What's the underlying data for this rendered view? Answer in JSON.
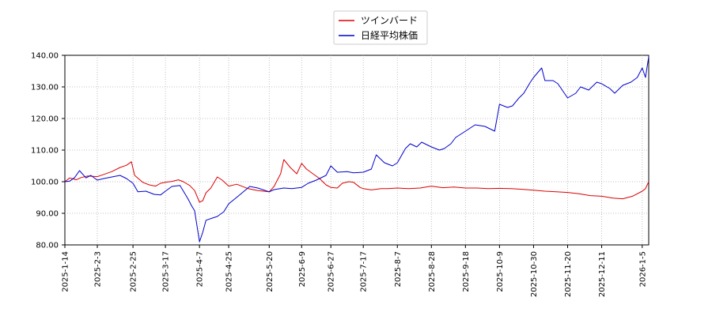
{
  "chart_data": {
    "type": "line",
    "title": "",
    "xlabel": "",
    "ylabel": "",
    "ylim": [
      80,
      140
    ],
    "yticks": [
      80,
      90,
      100,
      110,
      120,
      130,
      140
    ],
    "ytick_labels": [
      "80.00",
      "90.00",
      "100.00",
      "110.00",
      "120.00",
      "130.00",
      "140.00"
    ],
    "xlim": [
      "2025-01-14",
      "2026-01-09"
    ],
    "xticks": [
      "2025-01-14",
      "2025-02-03",
      "2025-02-25",
      "2025-03-17",
      "2025-04-07",
      "2025-04-25",
      "2025-05-20",
      "2025-06-09",
      "2025-06-27",
      "2025-07-17",
      "2025-08-07",
      "2025-08-28",
      "2025-09-18",
      "2025-10-09",
      "2025-10-30",
      "2025-11-20",
      "2025-12-11",
      "2026-01-05"
    ],
    "xtick_labels": [
      "2025-1-14",
      "2025-2-3",
      "2025-2-25",
      "2025-3-17",
      "2025-4-7",
      "2025-4-25",
      "2025-5-20",
      "2025-6-9",
      "2025-6-27",
      "2025-7-17",
      "2025-8-7",
      "2025-8-28",
      "2025-9-18",
      "2025-10-9",
      "2025-10-30",
      "2025-11-20",
      "2025-12-11",
      "2026-1-5"
    ],
    "grid": true,
    "legend_position": "top-center",
    "series": [
      {
        "name": "ツインバード",
        "color": "#dd0000",
        "points": [
          [
            "2025-01-14",
            100.0
          ],
          [
            "2025-01-17",
            101.2
          ],
          [
            "2025-01-21",
            100.6
          ],
          [
            "2025-01-24",
            101.3
          ],
          [
            "2025-01-28",
            101.8
          ],
          [
            "2025-02-03",
            101.6
          ],
          [
            "2025-02-07",
            102.3
          ],
          [
            "2025-02-12",
            103.2
          ],
          [
            "2025-02-17",
            104.5
          ],
          [
            "2025-02-21",
            105.2
          ],
          [
            "2025-02-24",
            106.3
          ],
          [
            "2025-02-26",
            102.0
          ],
          [
            "2025-03-03",
            99.8
          ],
          [
            "2025-03-07",
            99.0
          ],
          [
            "2025-03-11",
            98.6
          ],
          [
            "2025-03-14",
            99.5
          ],
          [
            "2025-03-17",
            99.8
          ],
          [
            "2025-03-21",
            100.1
          ],
          [
            "2025-03-25",
            100.6
          ],
          [
            "2025-03-28",
            100.0
          ],
          [
            "2025-04-01",
            98.8
          ],
          [
            "2025-04-04",
            97.2
          ],
          [
            "2025-04-07",
            93.5
          ],
          [
            "2025-04-09",
            94.0
          ],
          [
            "2025-04-11",
            96.5
          ],
          [
            "2025-04-14",
            98.0
          ],
          [
            "2025-04-18",
            101.5
          ],
          [
            "2025-04-21",
            100.5
          ],
          [
            "2025-04-25",
            98.6
          ],
          [
            "2025-04-30",
            99.2
          ],
          [
            "2025-05-07",
            97.8
          ],
          [
            "2025-05-13",
            97.2
          ],
          [
            "2025-05-20",
            96.8
          ],
          [
            "2025-05-23",
            98.5
          ],
          [
            "2025-05-27",
            102.5
          ],
          [
            "2025-05-29",
            107.0
          ],
          [
            "2025-06-02",
            104.5
          ],
          [
            "2025-06-06",
            102.5
          ],
          [
            "2025-06-09",
            105.8
          ],
          [
            "2025-06-12",
            104.0
          ],
          [
            "2025-06-16",
            102.5
          ],
          [
            "2025-06-20",
            101.0
          ],
          [
            "2025-06-24",
            99.0
          ],
          [
            "2025-06-27",
            98.2
          ],
          [
            "2025-07-01",
            98.0
          ],
          [
            "2025-07-04",
            99.5
          ],
          [
            "2025-07-08",
            100.0
          ],
          [
            "2025-07-11",
            99.8
          ],
          [
            "2025-07-15",
            98.2
          ],
          [
            "2025-07-17",
            97.8
          ],
          [
            "2025-07-22",
            97.4
          ],
          [
            "2025-07-28",
            97.8
          ],
          [
            "2025-08-01",
            97.8
          ],
          [
            "2025-08-07",
            98.0
          ],
          [
            "2025-08-14",
            97.8
          ],
          [
            "2025-08-21",
            98.0
          ],
          [
            "2025-08-28",
            98.6
          ],
          [
            "2025-09-04",
            98.1
          ],
          [
            "2025-09-11",
            98.3
          ],
          [
            "2025-09-18",
            98.0
          ],
          [
            "2025-09-25",
            98.0
          ],
          [
            "2025-10-02",
            97.8
          ],
          [
            "2025-10-09",
            97.9
          ],
          [
            "2025-10-16",
            97.8
          ],
          [
            "2025-10-23",
            97.6
          ],
          [
            "2025-10-30",
            97.3
          ],
          [
            "2025-11-06",
            97.0
          ],
          [
            "2025-11-13",
            96.8
          ],
          [
            "2025-11-20",
            96.6
          ],
          [
            "2025-11-27",
            96.2
          ],
          [
            "2025-12-04",
            95.6
          ],
          [
            "2025-12-11",
            95.4
          ],
          [
            "2025-12-18",
            94.8
          ],
          [
            "2025-12-24",
            94.6
          ],
          [
            "2025-12-30",
            95.4
          ],
          [
            "2026-01-05",
            97.0
          ],
          [
            "2026-01-07",
            97.8
          ],
          [
            "2026-01-09",
            100.0
          ]
        ]
      },
      {
        "name": "日経平均株価",
        "color": "#0000cc",
        "points": [
          [
            "2025-01-14",
            100.0
          ],
          [
            "2025-01-17",
            100.2
          ],
          [
            "2025-01-20",
            101.3
          ],
          [
            "2025-01-23",
            103.5
          ],
          [
            "2025-01-27",
            101.2
          ],
          [
            "2025-01-30",
            102.0
          ],
          [
            "2025-02-03",
            100.5
          ],
          [
            "2025-02-07",
            101.0
          ],
          [
            "2025-02-12",
            101.5
          ],
          [
            "2025-02-17",
            102.0
          ],
          [
            "2025-02-21",
            101.0
          ],
          [
            "2025-02-25",
            99.5
          ],
          [
            "2025-02-28",
            96.8
          ],
          [
            "2025-03-05",
            97.0
          ],
          [
            "2025-03-10",
            96.0
          ],
          [
            "2025-03-14",
            95.8
          ],
          [
            "2025-03-17",
            97.0
          ],
          [
            "2025-03-21",
            98.5
          ],
          [
            "2025-03-26",
            98.8
          ],
          [
            "2025-03-31",
            94.5
          ],
          [
            "2025-04-02",
            92.5
          ],
          [
            "2025-04-04",
            90.8
          ],
          [
            "2025-04-07",
            81.0
          ],
          [
            "2025-04-09",
            84.0
          ],
          [
            "2025-04-11",
            87.8
          ],
          [
            "2025-04-15",
            88.5
          ],
          [
            "2025-04-18",
            89.0
          ],
          [
            "2025-04-22",
            90.5
          ],
          [
            "2025-04-25",
            93.0
          ],
          [
            "2025-05-01",
            95.5
          ],
          [
            "2025-05-08",
            98.5
          ],
          [
            "2025-05-13",
            98.0
          ],
          [
            "2025-05-20",
            96.8
          ],
          [
            "2025-05-23",
            97.5
          ],
          [
            "2025-05-29",
            98.0
          ],
          [
            "2025-06-03",
            97.8
          ],
          [
            "2025-06-09",
            98.2
          ],
          [
            "2025-06-13",
            99.5
          ],
          [
            "2025-06-18",
            100.5
          ],
          [
            "2025-06-24",
            102.0
          ],
          [
            "2025-06-27",
            105.0
          ],
          [
            "2025-07-01",
            103.0
          ],
          [
            "2025-07-07",
            103.2
          ],
          [
            "2025-07-11",
            102.8
          ],
          [
            "2025-07-17",
            103.0
          ],
          [
            "2025-07-22",
            104.0
          ],
          [
            "2025-07-25",
            108.5
          ],
          [
            "2025-07-30",
            106.0
          ],
          [
            "2025-08-04",
            105.0
          ],
          [
            "2025-08-07",
            106.0
          ],
          [
            "2025-08-12",
            110.5
          ],
          [
            "2025-08-15",
            112.0
          ],
          [
            "2025-08-19",
            111.0
          ],
          [
            "2025-08-22",
            112.5
          ],
          [
            "2025-08-28",
            111.0
          ],
          [
            "2025-09-02",
            110.0
          ],
          [
            "2025-09-05",
            110.5
          ],
          [
            "2025-09-09",
            112.0
          ],
          [
            "2025-09-12",
            114.0
          ],
          [
            "2025-09-18",
            116.0
          ],
          [
            "2025-09-24",
            118.0
          ],
          [
            "2025-09-30",
            117.5
          ],
          [
            "2025-10-06",
            116.0
          ],
          [
            "2025-10-09",
            124.5
          ],
          [
            "2025-10-14",
            123.5
          ],
          [
            "2025-10-17",
            124.0
          ],
          [
            "2025-10-21",
            126.5
          ],
          [
            "2025-10-24",
            128.0
          ],
          [
            "2025-10-28",
            131.5
          ],
          [
            "2025-10-30",
            133.0
          ],
          [
            "2025-11-04",
            136.0
          ],
          [
            "2025-11-06",
            132.0
          ],
          [
            "2025-11-11",
            132.0
          ],
          [
            "2025-11-14",
            131.0
          ],
          [
            "2025-11-18",
            128.0
          ],
          [
            "2025-11-20",
            126.5
          ],
          [
            "2025-11-25",
            128.0
          ],
          [
            "2025-11-28",
            130.0
          ],
          [
            "2025-12-03",
            129.0
          ],
          [
            "2025-12-08",
            131.5
          ],
          [
            "2025-12-11",
            131.0
          ],
          [
            "2025-12-16",
            129.5
          ],
          [
            "2025-12-19",
            128.0
          ],
          [
            "2025-12-24",
            130.5
          ],
          [
            "2025-12-29",
            131.5
          ],
          [
            "2026-01-02",
            133.0
          ],
          [
            "2026-01-05",
            136.0
          ],
          [
            "2026-01-07",
            133.0
          ],
          [
            "2026-01-09",
            139.5
          ]
        ]
      }
    ]
  }
}
